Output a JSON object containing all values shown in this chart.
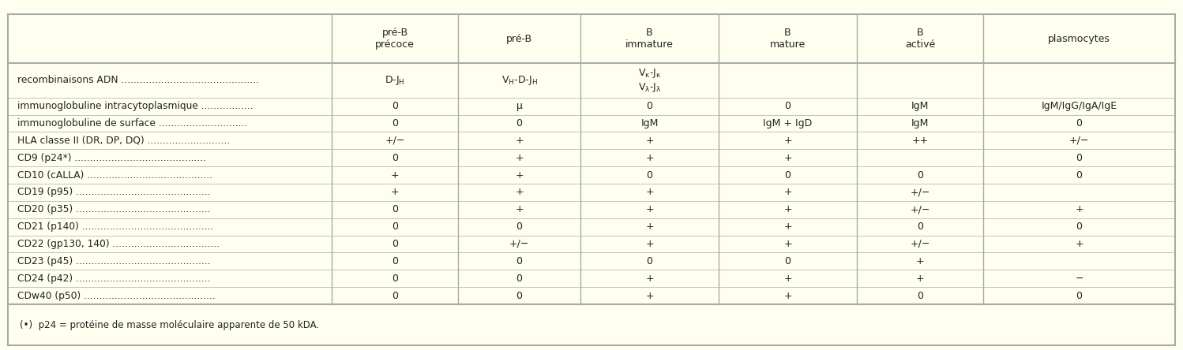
{
  "bg_color": "#fffff0",
  "border_color": "#aaaaaa",
  "text_color": "#222222",
  "col_headers": [
    "pré-B\nprécoce",
    "pré-B",
    "B\nimmature",
    "B\nmature",
    "B\nactivé",
    "plasmocytes"
  ],
  "row_labels": [
    "recombinaisons ADN",
    "immunoglobuline intracytoplasmique",
    "immunoglobuline de surface",
    "HLA classe II (DR, DP, DQ)",
    "CD9 (p24*)",
    "CD10 (cALLA)",
    "CD19 (p95)",
    "CD20 (p35)",
    "CD21 (p140)",
    "CD22 (gp130, 140)",
    "CD23 (p45)",
    "CD24 (p42)",
    "CDw40 (p50)"
  ],
  "table_data": [
    [
      "D-J$_\\mathregular{H}$",
      "V$_\\mathregular{H}$-D-J$_\\mathregular{H}$",
      "V$_\\mathregular{\\kappa}$-J$_\\mathregular{\\kappa}$\nV$_\\mathregular{\\lambda}$-J$_\\mathregular{\\lambda}$",
      "",
      "",
      ""
    ],
    [
      "0",
      "μ",
      "0",
      "0",
      "IgM",
      "IgM/IgG/IgA/IgE"
    ],
    [
      "0",
      "0",
      "IgM",
      "IgM + IgD",
      "IgM",
      "0"
    ],
    [
      "+/−",
      "+",
      "+",
      "+",
      "++",
      "+/−"
    ],
    [
      "0",
      "+",
      "+",
      "+",
      "",
      "0"
    ],
    [
      "+",
      "+",
      "0",
      "0",
      "0",
      "0"
    ],
    [
      "+",
      "+",
      "+",
      "+",
      "+/−",
      ""
    ],
    [
      "0",
      "+",
      "+",
      "+",
      "+/−",
      "+"
    ],
    [
      "0",
      "0",
      "+",
      "+",
      "0",
      "0"
    ],
    [
      "0",
      "+/−",
      "+",
      "+",
      "+/−",
      "+"
    ],
    [
      "0",
      "0",
      "0",
      "0",
      "+",
      ""
    ],
    [
      "0",
      "0",
      "+",
      "+",
      "+",
      "−"
    ],
    [
      "0",
      "0",
      "+",
      "+",
      "0",
      "0"
    ]
  ],
  "row_heights": [
    2.0,
    1.0,
    1.0,
    1.0,
    1.0,
    1.0,
    1.0,
    1.0,
    1.0,
    1.0,
    1.0,
    1.0,
    1.0
  ],
  "footnote": "(•)  p24 = protéine de masse moléculaire apparente de 50 kDA.",
  "figsize": [
    14.98,
    4.44
  ],
  "dpi": 100
}
